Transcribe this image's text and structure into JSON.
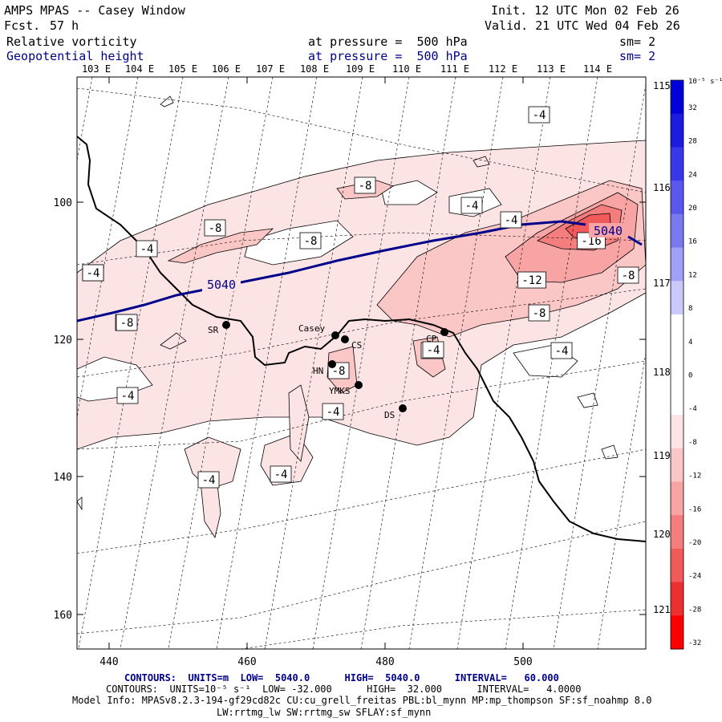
{
  "header": {
    "model_line": "AMPS MPAS -- Casey Window",
    "fcst_label": "Fcst.",
    "fcst_value": "57 h",
    "init_line": "Init. 12 UTC Mon 02 Feb 26",
    "valid_line": "Valid. 21 UTC Wed 04 Feb 26",
    "field1_name": "Relative vorticity",
    "field1_pressure": "at pressure =  500 hPa",
    "field1_sm": "sm= 2",
    "field2_name": "Geopotential height",
    "field2_pressure": "at pressure =  500 hPa",
    "field2_sm": "sm= 2"
  },
  "axes": {
    "top_lon_labels": [
      "103 E",
      "104 E",
      "105 E",
      "106 E",
      "107 E",
      "108 E",
      "109 E",
      "110 E",
      "111 E",
      "112 E",
      "113 E",
      "114 E"
    ],
    "right_lon_labels": [
      "115 E",
      "116 E",
      "117 E",
      "118 E",
      "119 E",
      "120 E",
      "121 E"
    ],
    "y_ticks": [
      "100",
      "120",
      "140",
      "160"
    ],
    "x_ticks": [
      "440",
      "460",
      "480",
      "500"
    ]
  },
  "colorbar": {
    "unit": "10⁻⁵ s⁻¹",
    "labels": [
      "32",
      "28",
      "24",
      "20",
      "16",
      "12",
      "8",
      "4",
      "0",
      "-4",
      "-8",
      "-12",
      "-16",
      "-20",
      "-24",
      "-28",
      "-32"
    ],
    "colors": [
      "#0000d8",
      "#1c1ce0",
      "#3838e8",
      "#5858ec",
      "#7a7af0",
      "#a0a0f6",
      "#cacafa",
      "#ffffff",
      "#ffffff",
      "#ffffff",
      "#fde4e4",
      "#fbc6c6",
      "#f8a4a4",
      "#f47e7e",
      "#f05a5a",
      "#ec3030",
      "#ff0000"
    ]
  },
  "stations": [
    {
      "name": "SR"
    },
    {
      "name": "Casey"
    },
    {
      "name": "CS"
    },
    {
      "name": "HN"
    },
    {
      "name": "YMKS"
    },
    {
      "name": "DS"
    },
    {
      "name": "CP"
    }
  ],
  "contour_labels": [
    "-4",
    "-8",
    "-4",
    "-8",
    "-4",
    "-8",
    "-4",
    "-4",
    "-4",
    "-16",
    "-12",
    "-8",
    "-8",
    "-8",
    "-4",
    "-4",
    "-8",
    "-4",
    "-4",
    "-4",
    "-4",
    "-8",
    "-4"
  ],
  "height_labels": [
    "5040",
    "5040"
  ],
  "footer": {
    "contours1": "CONTOURS:  UNITS=m  LOW=  5040.0      HIGH=  5040.0      INTERVAL=   60.000",
    "contours2": "CONTOURS:  UNITS=10⁻⁵ s⁻¹  LOW= -32.000      HIGH=  32.000      INTERVAL=   4.0000",
    "model_info": "Model Info: MPASv8.2.3-194-gf29cd82c CU:cu_grell_freitas PBL:bl_mynn MP:mp_thompson SF:sf_noahmp 8.0",
    "model_info2": "LW:rrtmg_lw SW:rrtmg_sw SFLAY:sf_mynn"
  }
}
